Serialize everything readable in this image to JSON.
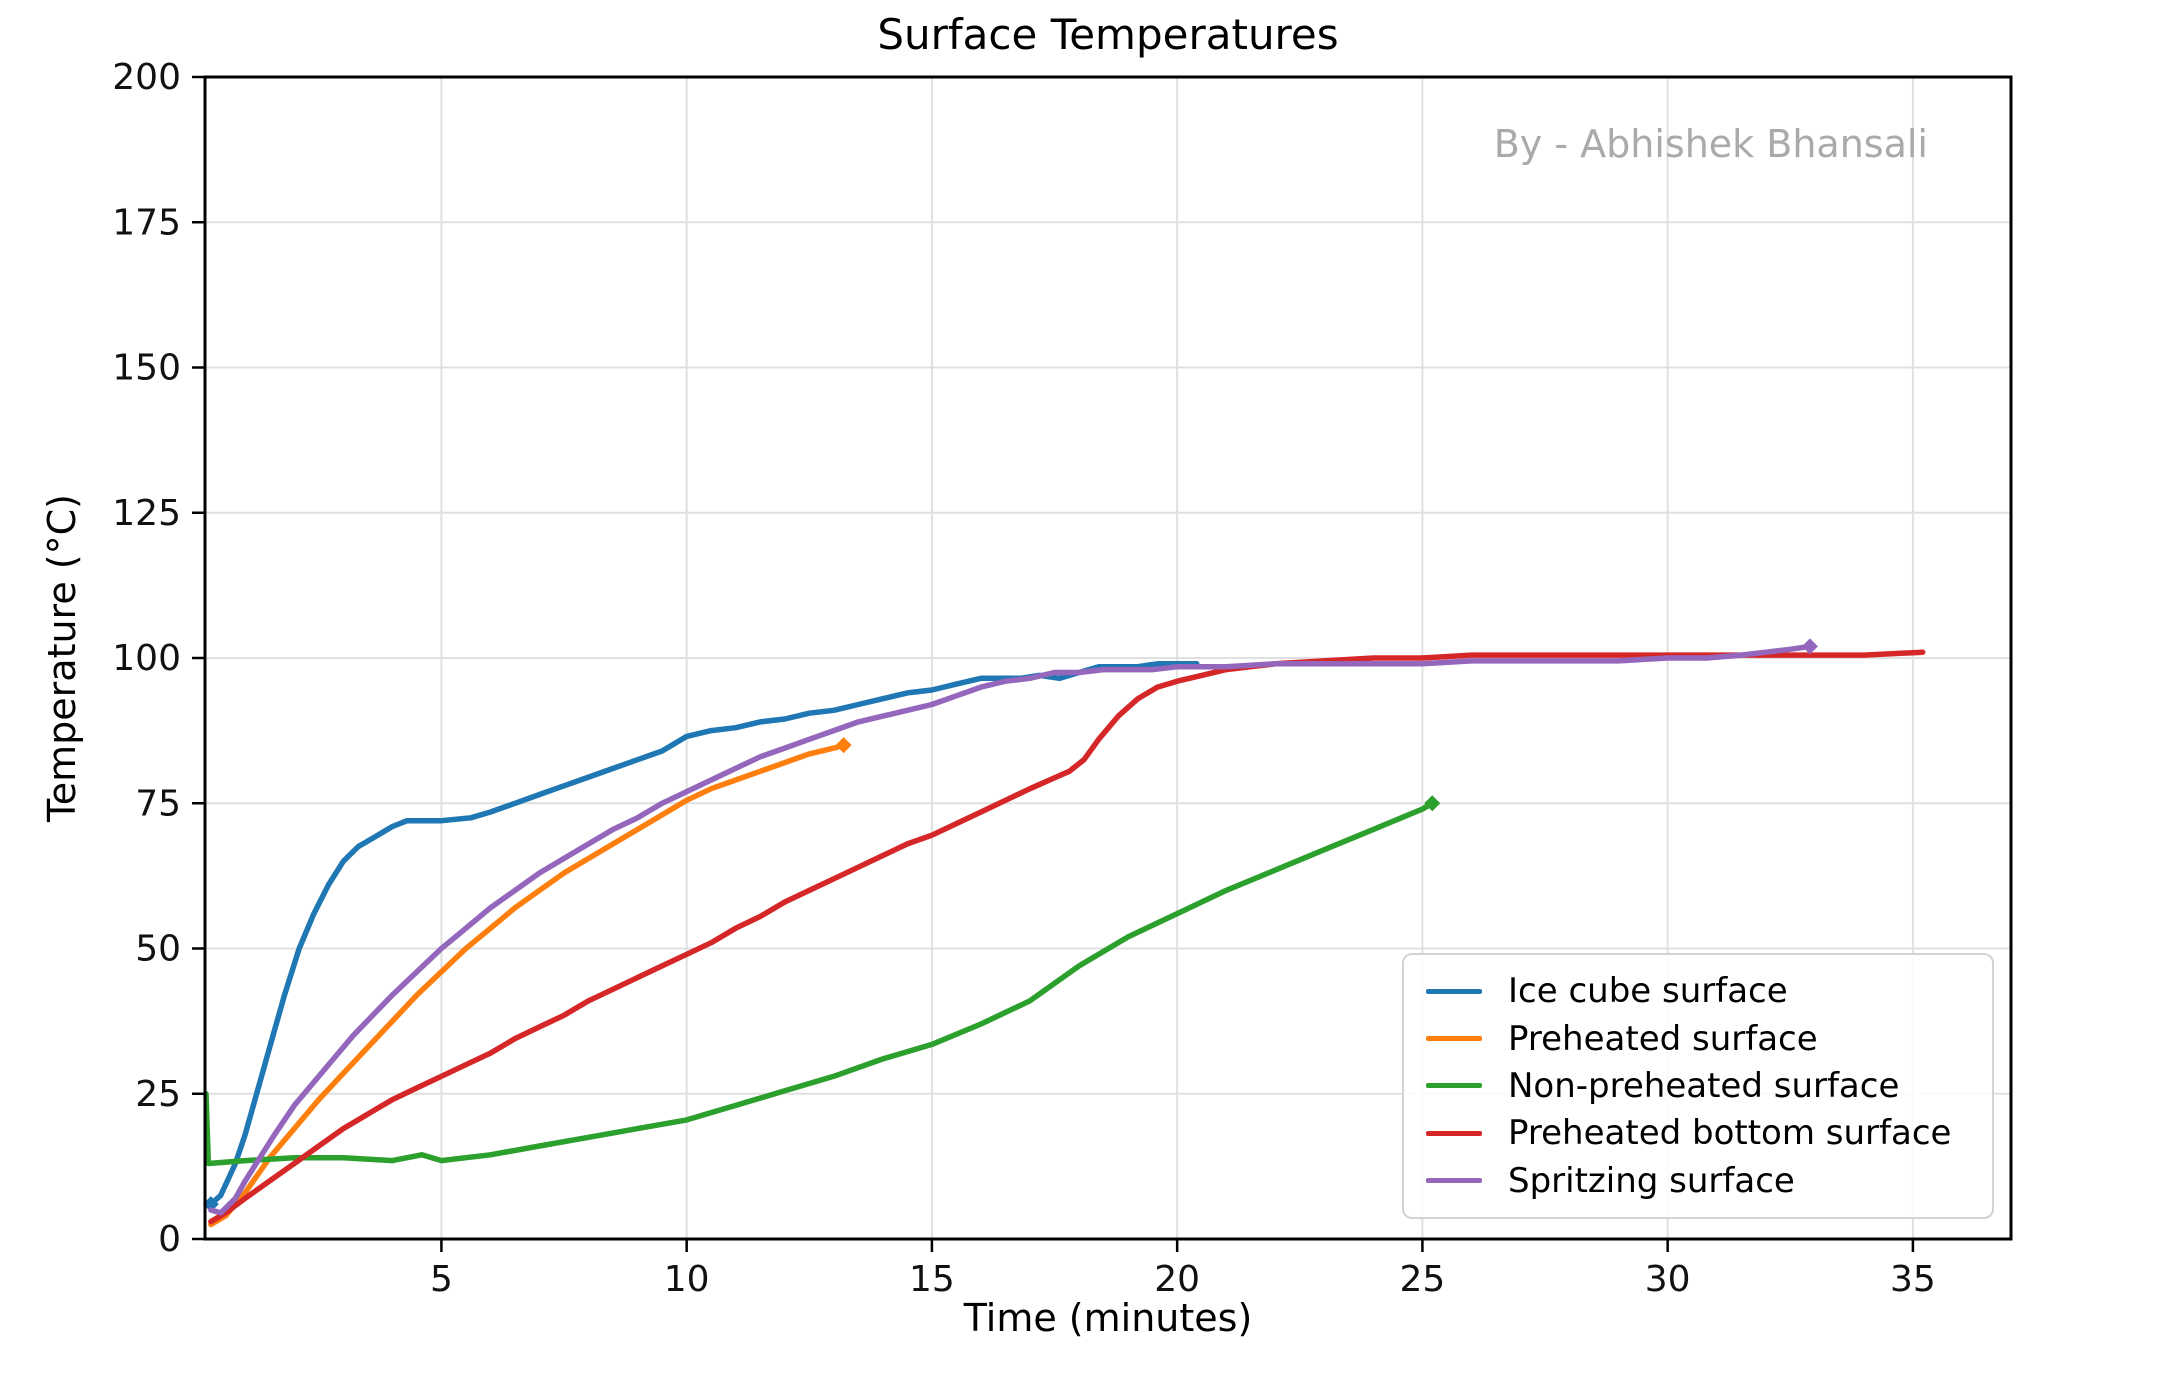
{
  "chart": {
    "title": "Surface Temperatures",
    "watermark": "By - Abhishek Bhansali",
    "watermark_color": "#aaaaaa"
  },
  "chart_data": {
    "type": "line",
    "title": "Surface Temperatures",
    "xlabel": "Time (minutes)",
    "ylabel": "Temperature (°C)",
    "xlim": [
      0.18,
      37.0
    ],
    "ylim": [
      0,
      200
    ],
    "xticks": [
      5,
      10,
      15,
      20,
      25,
      30,
      35
    ],
    "yticks": [
      0,
      25,
      50,
      75,
      100,
      125,
      150,
      175,
      200
    ],
    "grid": true,
    "legend_position": "lower right",
    "annotations": [
      "By - Abhishek Bhansali"
    ],
    "series": [
      {
        "name": "Ice cube surface",
        "color": "#1f77b4",
        "marker_start": true,
        "marker_end": false,
        "points": [
          [
            0.3,
            6
          ],
          [
            0.5,
            7.5
          ],
          [
            0.8,
            13
          ],
          [
            1,
            18
          ],
          [
            1.2,
            24
          ],
          [
            1.5,
            33
          ],
          [
            1.8,
            42
          ],
          [
            2.1,
            50
          ],
          [
            2.4,
            56
          ],
          [
            2.7,
            61
          ],
          [
            3,
            65
          ],
          [
            3.3,
            67.5
          ],
          [
            3.7,
            69.5
          ],
          [
            4,
            71
          ],
          [
            4.3,
            72
          ],
          [
            5,
            72
          ],
          [
            5.6,
            72.5
          ],
          [
            6,
            73.5
          ],
          [
            6.5,
            75
          ],
          [
            7,
            76.5
          ],
          [
            7.5,
            78
          ],
          [
            8,
            79.5
          ],
          [
            8.5,
            81
          ],
          [
            9,
            82.5
          ],
          [
            9.5,
            84
          ],
          [
            10,
            86.5
          ],
          [
            10.5,
            87.5
          ],
          [
            11,
            88
          ],
          [
            11.5,
            89
          ],
          [
            12,
            89.5
          ],
          [
            12.5,
            90.5
          ],
          [
            13,
            91
          ],
          [
            13.5,
            92
          ],
          [
            14,
            93
          ],
          [
            14.5,
            94
          ],
          [
            15,
            94.5
          ],
          [
            15.5,
            95.5
          ],
          [
            16,
            96.5
          ],
          [
            16.4,
            96.5
          ],
          [
            16.8,
            96.5
          ],
          [
            17.2,
            97
          ],
          [
            17.6,
            96.5
          ],
          [
            18,
            97.5
          ],
          [
            18.4,
            98.5
          ],
          [
            18.8,
            98.5
          ],
          [
            19.2,
            98.5
          ],
          [
            19.6,
            99
          ],
          [
            20,
            99
          ],
          [
            20.4,
            99
          ]
        ]
      },
      {
        "name": "Preheated surface",
        "color": "#ff7f0e",
        "marker_start": false,
        "marker_end": true,
        "points": [
          [
            0.3,
            2.5
          ],
          [
            0.6,
            4
          ],
          [
            1,
            8
          ],
          [
            1.5,
            14
          ],
          [
            2,
            19
          ],
          [
            2.5,
            24
          ],
          [
            3,
            28.5
          ],
          [
            3.5,
            33
          ],
          [
            4,
            37.5
          ],
          [
            4.5,
            42
          ],
          [
            5,
            46
          ],
          [
            5.5,
            50
          ],
          [
            6,
            53.5
          ],
          [
            6.5,
            57
          ],
          [
            7,
            60
          ],
          [
            7.5,
            63
          ],
          [
            8,
            65.5
          ],
          [
            8.5,
            68
          ],
          [
            9,
            70.5
          ],
          [
            9.5,
            73
          ],
          [
            10,
            75.5
          ],
          [
            10.5,
            77.5
          ],
          [
            11,
            79
          ],
          [
            11.5,
            80.5
          ],
          [
            12,
            82
          ],
          [
            12.5,
            83.5
          ],
          [
            13,
            84.5
          ],
          [
            13.2,
            85
          ]
        ]
      },
      {
        "name": "Non-preheated surface",
        "color": "#2ca02c",
        "marker_start": false,
        "marker_end": true,
        "points": [
          [
            0.2,
            25
          ],
          [
            0.25,
            13
          ],
          [
            1,
            13.5
          ],
          [
            2,
            14
          ],
          [
            3,
            14
          ],
          [
            4,
            13.5
          ],
          [
            4.6,
            14.5
          ],
          [
            5,
            13.5
          ],
          [
            5.5,
            14
          ],
          [
            6,
            14.5
          ],
          [
            7,
            16
          ],
          [
            8,
            17.5
          ],
          [
            9,
            19
          ],
          [
            10,
            20.5
          ],
          [
            11,
            23
          ],
          [
            12,
            25.5
          ],
          [
            13,
            28
          ],
          [
            14,
            31
          ],
          [
            15,
            33.5
          ],
          [
            16,
            37
          ],
          [
            17,
            41
          ],
          [
            18,
            47
          ],
          [
            19,
            52
          ],
          [
            20,
            56
          ],
          [
            21,
            60
          ],
          [
            22,
            63.5
          ],
          [
            23,
            67
          ],
          [
            24,
            70.5
          ],
          [
            25,
            74
          ],
          [
            25.2,
            75
          ]
        ]
      },
      {
        "name": "Preheated bottom surface",
        "color": "#d62728",
        "marker_start": false,
        "marker_end": false,
        "points": [
          [
            0.3,
            3
          ],
          [
            0.6,
            4.5
          ],
          [
            1,
            7
          ],
          [
            1.5,
            10
          ],
          [
            2,
            13
          ],
          [
            2.5,
            16
          ],
          [
            3,
            19
          ],
          [
            3.5,
            21.5
          ],
          [
            4,
            24
          ],
          [
            4.5,
            26
          ],
          [
            5,
            28
          ],
          [
            5.5,
            30
          ],
          [
            6,
            32
          ],
          [
            6.5,
            34.5
          ],
          [
            7,
            36.5
          ],
          [
            7.5,
            38.5
          ],
          [
            8,
            41
          ],
          [
            8.5,
            43
          ],
          [
            9,
            45
          ],
          [
            9.5,
            47
          ],
          [
            10,
            49
          ],
          [
            10.5,
            51
          ],
          [
            11,
            53.5
          ],
          [
            11.5,
            55.5
          ],
          [
            12,
            58
          ],
          [
            12.5,
            60
          ],
          [
            13,
            62
          ],
          [
            13.5,
            64
          ],
          [
            14,
            66
          ],
          [
            14.5,
            68
          ],
          [
            15,
            69.5
          ],
          [
            15.5,
            71.5
          ],
          [
            16,
            73.5
          ],
          [
            16.5,
            75.5
          ],
          [
            17,
            77.5
          ],
          [
            17.4,
            79
          ],
          [
            17.8,
            80.5
          ],
          [
            18.1,
            82.5
          ],
          [
            18.4,
            86
          ],
          [
            18.8,
            90
          ],
          [
            19.2,
            93
          ],
          [
            19.6,
            95
          ],
          [
            20,
            96
          ],
          [
            20.5,
            97
          ],
          [
            21,
            98
          ],
          [
            21.5,
            98.5
          ],
          [
            22,
            99
          ],
          [
            23,
            99.5
          ],
          [
            24,
            100
          ],
          [
            25,
            100
          ],
          [
            26,
            100.5
          ],
          [
            27,
            100.5
          ],
          [
            28,
            100.5
          ],
          [
            29,
            100.5
          ],
          [
            30,
            100.5
          ],
          [
            31,
            100.5
          ],
          [
            32,
            100.5
          ],
          [
            33,
            100.5
          ],
          [
            34,
            100.5
          ],
          [
            35.2,
            101
          ]
        ]
      },
      {
        "name": "Spritzing surface",
        "color": "#9467bd",
        "marker_start": false,
        "marker_end": true,
        "points": [
          [
            0.3,
            5
          ],
          [
            0.5,
            4.5
          ],
          [
            0.8,
            7
          ],
          [
            1,
            10
          ],
          [
            1.3,
            14
          ],
          [
            1.6,
            18
          ],
          [
            2,
            23
          ],
          [
            2.4,
            27
          ],
          [
            2.8,
            31
          ],
          [
            3.2,
            35
          ],
          [
            3.6,
            38.5
          ],
          [
            4,
            42
          ],
          [
            4.5,
            46
          ],
          [
            5,
            50
          ],
          [
            5.5,
            53.5
          ],
          [
            6,
            57
          ],
          [
            6.5,
            60
          ],
          [
            7,
            63
          ],
          [
            7.5,
            65.5
          ],
          [
            8,
            68
          ],
          [
            8.5,
            70.5
          ],
          [
            9,
            72.5
          ],
          [
            9.5,
            75
          ],
          [
            10,
            77
          ],
          [
            10.5,
            79
          ],
          [
            11,
            81
          ],
          [
            11.5,
            83
          ],
          [
            12,
            84.5
          ],
          [
            12.5,
            86
          ],
          [
            13,
            87.5
          ],
          [
            13.5,
            89
          ],
          [
            14,
            90
          ],
          [
            14.5,
            91
          ],
          [
            15,
            92
          ],
          [
            15.5,
            93.5
          ],
          [
            16,
            95
          ],
          [
            16.5,
            96
          ],
          [
            17,
            96.5
          ],
          [
            17.5,
            97.5
          ],
          [
            18,
            97.5
          ],
          [
            18.5,
            98
          ],
          [
            19,
            98
          ],
          [
            19.5,
            98
          ],
          [
            20,
            98.5
          ],
          [
            21,
            98.5
          ],
          [
            22,
            99
          ],
          [
            23,
            99
          ],
          [
            24,
            99
          ],
          [
            25,
            99
          ],
          [
            26,
            99.5
          ],
          [
            27,
            99.5
          ],
          [
            28,
            99.5
          ],
          [
            29,
            99.5
          ],
          [
            30,
            100
          ],
          [
            30.8,
            100
          ],
          [
            31.5,
            100.5
          ],
          [
            32,
            101
          ],
          [
            32.5,
            101.5
          ],
          [
            32.9,
            102
          ]
        ]
      }
    ]
  }
}
